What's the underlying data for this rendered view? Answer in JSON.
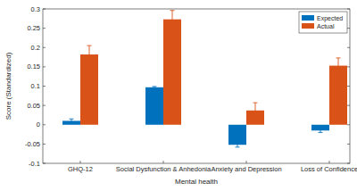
{
  "chart_data": {
    "type": "bar",
    "x_label": "Mental health",
    "y_label": "Score (Standardized)",
    "categories": [
      "GHQ-12",
      "Social Dysfunction & Anhedonia",
      "Anxiety and Depression",
      "Loss of Confidence"
    ],
    "series": [
      {
        "name": "Expected",
        "color": "#0072bd",
        "values": [
          0.01,
          0.097,
          -0.052,
          -0.015
        ],
        "errors": [
          0.005,
          0.002,
          0.006,
          0.005
        ]
      },
      {
        "name": "Actual",
        "color": "#d95319",
        "values": [
          0.182,
          0.273,
          0.037,
          0.153
        ],
        "errors": [
          0.023,
          0.023,
          0.02,
          0.02
        ]
      }
    ],
    "ylim": [
      -0.1,
      0.3
    ],
    "yticks": [
      -0.1,
      -0.05,
      0,
      0.05,
      0.1,
      0.15,
      0.2,
      0.25,
      0.3
    ],
    "legend": "northeast",
    "grid": false
  }
}
